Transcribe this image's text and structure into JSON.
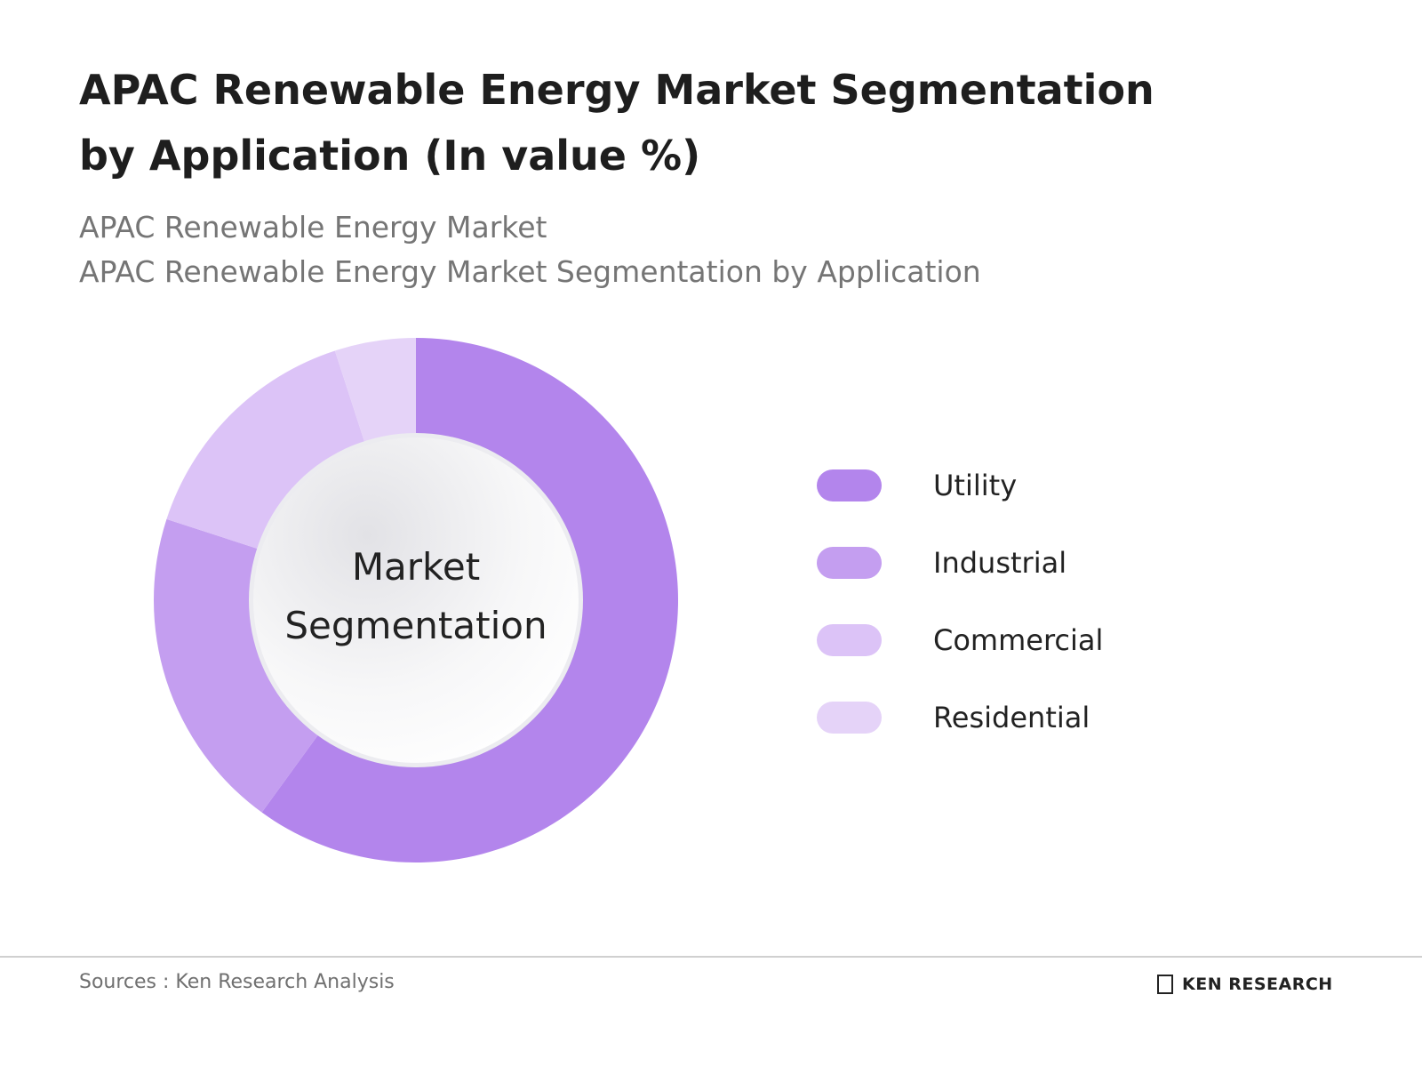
{
  "chart_data": {
    "type": "donut",
    "title": "APAC Renewable Energy Market Segmentation by Application (In value %)",
    "subtitles": [
      "APAC Renewable Energy Market",
      "APAC Renewable Energy Market Segmentation by Application"
    ],
    "center_label": "Market Segmentation",
    "categories": [
      "Utility",
      "Industrial",
      "Commercial",
      "Residential"
    ],
    "values": [
      60,
      20,
      15,
      5
    ],
    "colors": [
      "#b385ec",
      "#c49ef0",
      "#dcc3f7",
      "#e5d3f8"
    ]
  },
  "footer": {
    "source": "Sources : Ken Research Analysis",
    "brand": "KEN RESEARCH"
  }
}
